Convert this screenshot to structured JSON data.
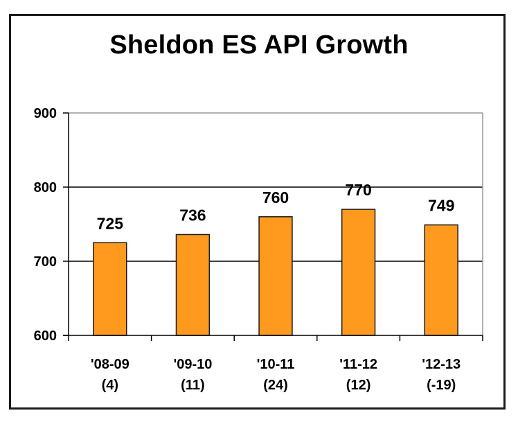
{
  "chart_data": {
    "type": "bar",
    "title": "Sheldon ES API Growth",
    "xlabel": "",
    "ylabel": "",
    "categories": [
      "'08-09",
      "'09-10",
      "'10-11",
      "'11-12",
      "'12-13"
    ],
    "category_sublabels": [
      "(4)",
      "(11)",
      "(24)",
      "(12)",
      "(-19)"
    ],
    "values": [
      725,
      736,
      760,
      770,
      749
    ],
    "data_labels": [
      "725",
      "736",
      "760",
      "770",
      "749"
    ],
    "ylim": [
      600,
      900
    ],
    "yticks": [
      600,
      700,
      800,
      900
    ],
    "ytick_labels": [
      "600",
      "700",
      "800",
      "900"
    ],
    "grid": true,
    "legend": "none",
    "colors": {
      "bar_fill": "#FF9A1F",
      "bar_stroke": "#1a1a1a",
      "gridline": "#000000",
      "frame": "#1a1a1a"
    }
  }
}
